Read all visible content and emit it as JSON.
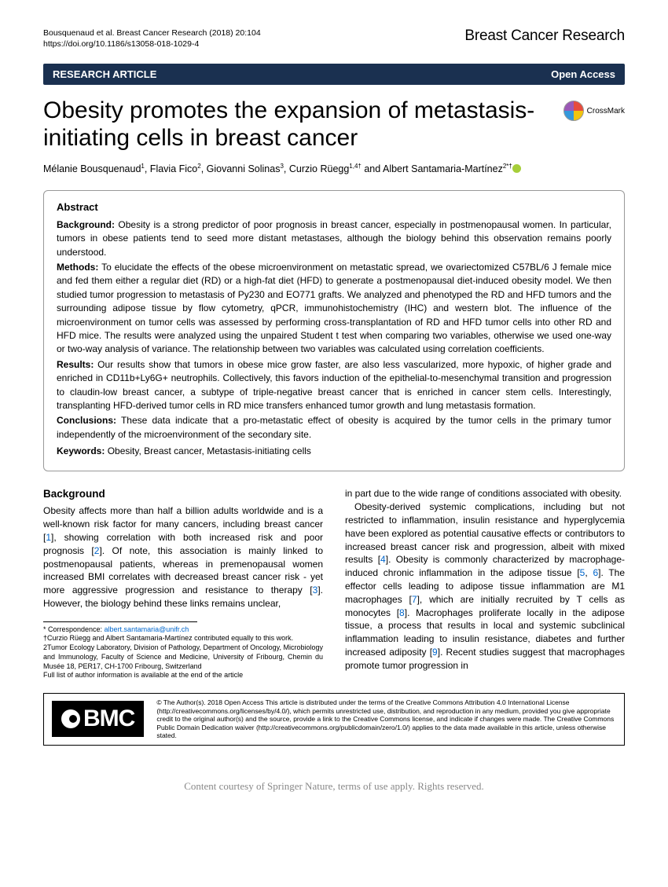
{
  "header": {
    "citation": "Bousquenaud et al. Breast Cancer Research  (2018) 20:104",
    "doi": "https://doi.org/10.1186/s13058-018-1029-4",
    "journal": "Breast Cancer Research"
  },
  "banner": {
    "left": "RESEARCH ARTICLE",
    "right": "Open Access"
  },
  "title": "Obesity promotes the expansion of metastasis-initiating cells in breast cancer",
  "crossmark": "CrossMark",
  "authors_html": "Mélanie Bousquenaud<sup>1</sup>, Flavia Fico<sup>2</sup>, Giovanni Solinas<sup>3</sup>, Curzio Rüegg<sup>1,4†</sup> and Albert Santamaria-Martínez<sup>2*†</sup>",
  "abstract": {
    "title": "Abstract",
    "background_label": "Background:",
    "background": " Obesity is a strong predictor of poor prognosis in breast cancer, especially in postmenopausal women. In particular, tumors in obese patients tend to seed more distant metastases, although the biology behind this observation remains poorly understood.",
    "methods_label": "Methods:",
    "methods": " To elucidate the effects of the obese microenvironment on metastatic spread, we ovariectomized C57BL/6 J female mice and fed them either a regular diet (RD) or a high-fat diet (HFD) to generate a postmenopausal diet-induced obesity model. We then studied tumor progression to metastasis of Py230 and EO771 grafts. We analyzed and phenotyped the RD and HFD tumors and the surrounding adipose tissue by flow cytometry, qPCR, immunohistochemistry (IHC) and western blot. The influence of the microenvironment on tumor cells was assessed by performing cross-transplantation of RD and HFD tumor cells into other RD and HFD mice. The results were analyzed using the unpaired Student t test when comparing two variables, otherwise we used one-way or two-way analysis of variance. The relationship between two variables was calculated using correlation coefficients.",
    "results_label": "Results:",
    "results": " Our results show that tumors in obese mice grow faster, are also less vascularized, more hypoxic, of higher grade and enriched in CD11b+Ly6G+ neutrophils. Collectively, this favors induction of the epithelial-to-mesenchymal transition and progression to claudin-low breast cancer, a subtype of triple-negative breast cancer that is enriched in cancer stem cells. Interestingly, transplanting HFD-derived tumor cells in RD mice transfers enhanced tumor growth and lung metastasis formation.",
    "conclusions_label": "Conclusions:",
    "conclusions": " These data indicate that a pro-metastatic effect of obesity is acquired by the tumor cells in the primary tumor independently of the microenvironment of the secondary site.",
    "keywords_label": "Keywords:",
    "keywords": " Obesity, Breast cancer, Metastasis-initiating cells"
  },
  "body": {
    "heading": "Background",
    "col1_p1a": "Obesity affects more than half a billion adults worldwide and is a well-known risk factor for many cancers, including breast cancer [",
    "ref1": "1",
    "col1_p1b": "], showing correlation with both increased risk and poor prognosis [",
    "ref2": "2",
    "col1_p1c": "]. Of note, this association is mainly linked to postmenopausal patients, whereas in premenopausal women increased BMI correlates with decreased breast cancer risk - yet more aggressive progression and resistance to therapy [",
    "ref3": "3",
    "col1_p1d": "]. However, the biology behind these links remains unclear,",
    "col2_p1": "in part due to the wide range of conditions associated with obesity.",
    "col2_p2a": "Obesity-derived systemic complications, including but not restricted to inflammation, insulin resistance and hyperglycemia have been explored as potential causative effects or contributors to increased breast cancer risk and progression, albeit with mixed results [",
    "ref4": "4",
    "col2_p2b": "]. Obesity is commonly characterized by macrophage-induced chronic inflammation in the adipose tissue [",
    "ref5": "5",
    "ref6": "6",
    "col2_p2c": "]. The effector cells leading to adipose tissue inflammation are M1 macrophages [",
    "ref7": "7",
    "col2_p2d": "], which are initially recruited by T cells as monocytes [",
    "ref8": "8",
    "col2_p2e": "]. Macrophages proliferate locally in the adipose tissue, a process that results in local and systemic subclinical inflammation leading to insulin resistance, diabetes and further increased adiposity [",
    "ref9": "9",
    "col2_p2f": "]. Recent studies suggest that macrophages promote tumor progression in"
  },
  "footnotes": {
    "correspondence_label": "* Correspondence: ",
    "email": "albert.santamaria@unifr.ch",
    "equal": "†Curzio Rüegg and Albert Santamaria-Martínez contributed equally to this work.",
    "affil": "2Tumor Ecology Laboratory, Division of Pathology, Department of Oncology, Microbiology and Immunology, Faculty of Science and Medicine, University of Fribourg, Chemin du Musée 18, PER17, CH-1700 Fribourg, Switzerland",
    "full_list": "Full list of author information is available at the end of the article"
  },
  "footer": {
    "bmc": "BMC",
    "license": "© The Author(s). 2018 Open Access This article is distributed under the terms of the Creative Commons Attribution 4.0 International License (http://creativecommons.org/licenses/by/4.0/), which permits unrestricted use, distribution, and reproduction in any medium, provided you give appropriate credit to the original author(s) and the source, provide a link to the Creative Commons license, and indicate if changes were made. The Creative Commons Public Domain Dedication waiver (http://creativecommons.org/publicdomain/zero/1.0/) applies to the data made available in this article, unless otherwise stated."
  },
  "courtesy": "Content courtesy of Springer Nature, terms of use apply. Rights reserved."
}
